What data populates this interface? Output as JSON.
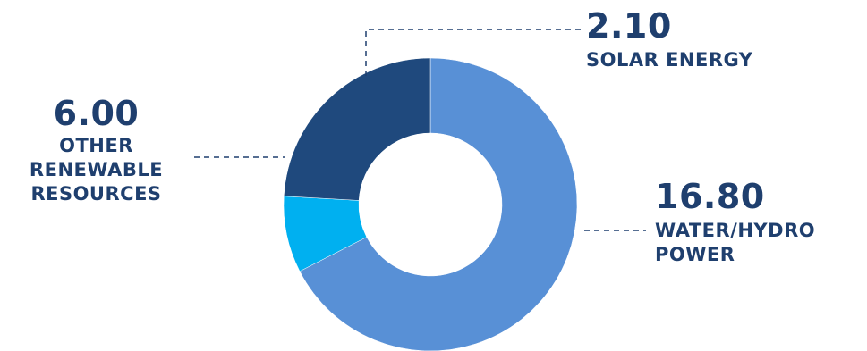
{
  "chart_data": {
    "type": "pie",
    "title": "",
    "series": [
      {
        "values": [
          16.8,
          2.1,
          6.0
        ],
        "value_labels": [
          "16.80",
          "2.10",
          "6.00"
        ],
        "categories": [
          "WATER/HYDRO POWER",
          "SOLAR ENERGY",
          "OTHER RENEWABLE RESOURCES"
        ],
        "category_lines": [
          [
            "WATER/HYDRO",
            "POWER"
          ],
          [
            "SOLAR ENERGY"
          ],
          [
            "OTHER",
            "RENEWABLE",
            "RESOURCES"
          ]
        ],
        "colors": [
          "#5890d6",
          "#00b0f0",
          "#1f497d"
        ]
      }
    ],
    "donut": true,
    "leader_line_color": "#1f3f6e",
    "label_color": "#1f3f6e",
    "legend": "none"
  }
}
